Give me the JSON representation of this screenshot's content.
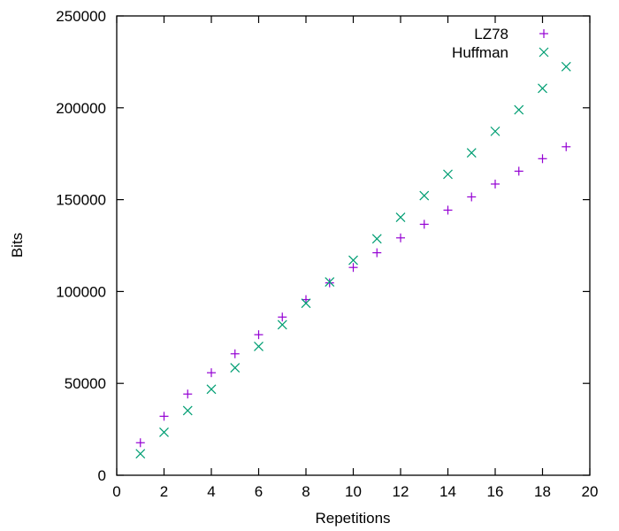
{
  "chart_data": {
    "type": "scatter",
    "title": "",
    "xlabel": "Repetitions",
    "ylabel": "Bits",
    "xlim": [
      0,
      20
    ],
    "ylim": [
      0,
      250000
    ],
    "xticks": [
      0,
      2,
      4,
      6,
      8,
      10,
      12,
      14,
      16,
      18,
      20
    ],
    "yticks": [
      0,
      50000,
      100000,
      150000,
      200000,
      250000
    ],
    "xtick_labels": [
      "0",
      "2",
      "4",
      "6",
      "8",
      "10",
      "12",
      "14",
      "16",
      "18",
      "20"
    ],
    "ytick_labels": [
      "0",
      "50000",
      "100000",
      "150000",
      "200000",
      "250000"
    ],
    "grid": false,
    "legend_position": "top-right",
    "series": [
      {
        "name": "LZ78",
        "marker": "plus",
        "color": "#9400d3",
        "x": [
          1,
          2,
          3,
          4,
          5,
          6,
          7,
          8,
          9,
          10,
          11,
          12,
          13,
          14,
          15,
          16,
          17,
          18,
          19
        ],
        "y": [
          17700,
          32100,
          44200,
          55800,
          66100,
          76500,
          86100,
          95600,
          104700,
          113100,
          121100,
          129200,
          136600,
          144300,
          151500,
          158500,
          165500,
          172300,
          178800
        ]
      },
      {
        "name": "Huffman",
        "marker": "cross",
        "color": "#009e73",
        "x": [
          1,
          2,
          3,
          4,
          5,
          6,
          7,
          8,
          9,
          10,
          11,
          12,
          13,
          14,
          15,
          16,
          17,
          18,
          19
        ],
        "y": [
          11700,
          23400,
          35200,
          46800,
          58500,
          70100,
          81900,
          93600,
          105200,
          117000,
          128700,
          140400,
          152200,
          163800,
          175500,
          187200,
          198900,
          210600,
          222400
        ]
      }
    ]
  }
}
